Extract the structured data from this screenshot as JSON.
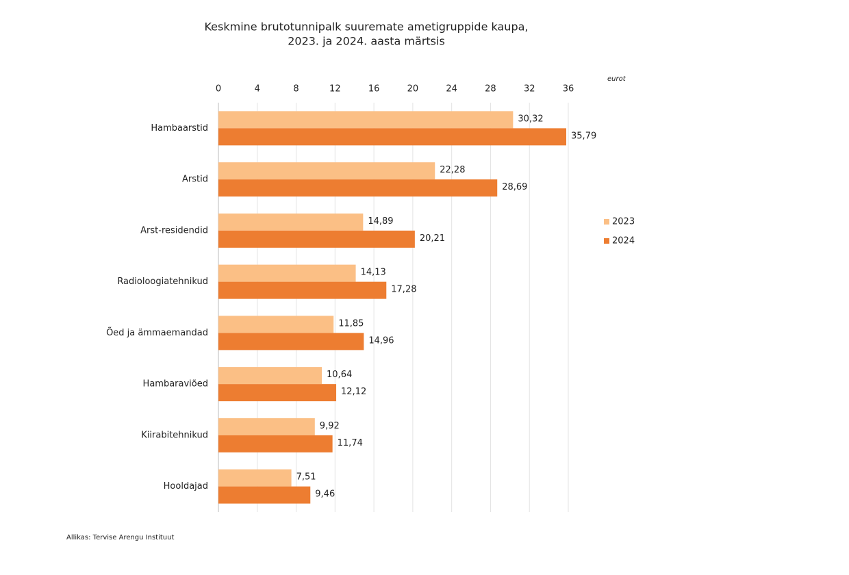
{
  "chart_data": {
    "type": "hbar",
    "title": [
      "Keskmine brutotunnipalk suuremate ametigruppide kaupa,",
      "2023. ja 2024. aasta märtsis"
    ],
    "x_unit": "eurot",
    "source": "Allikas: Tervise Arengu Instituut",
    "categories": [
      "Hambaarstid",
      "Arstid",
      "Arst-residendid",
      "Radioloogiatehnikud",
      "Õed ja ämmaemandad",
      "Hambaraviõed",
      "Kiirabitehnikud",
      "Hooldajad"
    ],
    "series": [
      {
        "name": "2023",
        "color": "#fbbf85",
        "values": [
          30.32,
          22.28,
          14.89,
          14.13,
          11.85,
          10.64,
          9.92,
          7.51
        ],
        "value_labels": [
          "30,32",
          "22,28",
          "14,89",
          "14,13",
          "11,85",
          "10,64",
          "9,92",
          "7,51"
        ]
      },
      {
        "name": "2024",
        "color": "#ed7d31",
        "values": [
          35.79,
          28.69,
          20.21,
          17.28,
          14.96,
          12.12,
          11.74,
          9.46
        ],
        "value_labels": [
          "35,79",
          "28,69",
          "20,21",
          "17,28",
          "14,96",
          "12,12",
          "11,74",
          "9,46"
        ]
      }
    ],
    "xlim": [
      0,
      36
    ],
    "xticks": [
      0,
      4,
      8,
      12,
      16,
      20,
      24,
      28,
      32,
      36
    ],
    "grid": true,
    "legend": "right"
  }
}
